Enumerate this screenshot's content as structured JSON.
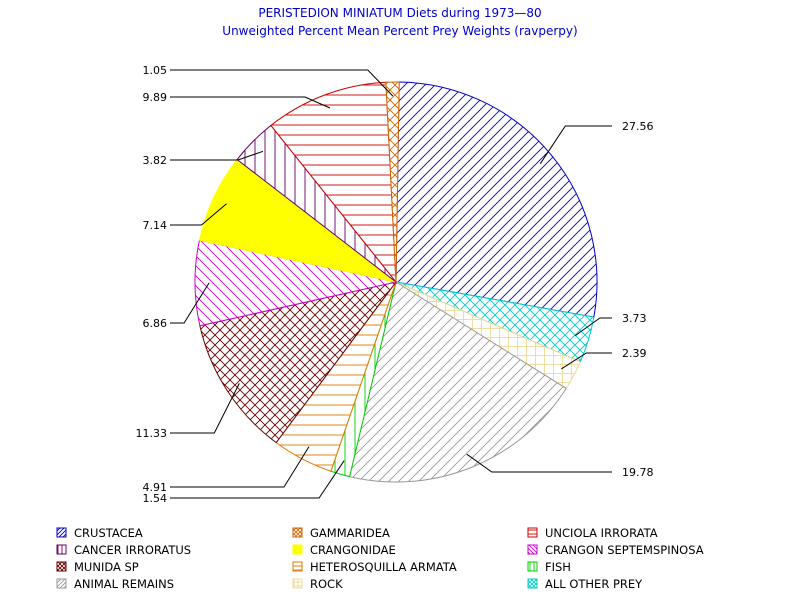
{
  "chart_data": {
    "type": "pie",
    "title": "PERISTEDION MINIATUM Diets during 1973—80",
    "subtitle": "Unweighted Percent Mean Percent Prey  Weights (ravperpy)",
    "slices": [
      {
        "name": "CRUSTACEA",
        "value": 27.56,
        "color": "#0000cc",
        "pattern": "diag-up"
      },
      {
        "name": "ALL OTHER PREY",
        "value": 3.73,
        "color": "#00cccc",
        "pattern": "crosshatch-diag"
      },
      {
        "name": "ROCK",
        "value": 2.39,
        "color": "#f0d898",
        "pattern": "grid"
      },
      {
        "name": "ANIMAL REMAINS",
        "value": 19.78,
        "color": "#999999",
        "pattern": "diag-up"
      },
      {
        "name": "FISH",
        "value": 1.54,
        "color": "#00cc00",
        "pattern": "vertical"
      },
      {
        "name": "HETEROSQUILLA ARMATA",
        "value": 4.91,
        "color": "#e07800",
        "pattern": "horizontal"
      },
      {
        "name": "MUNIDA SP",
        "value": 11.33,
        "color": "#660000",
        "pattern": "crosshatch-diag"
      },
      {
        "name": "CRANGON SEPTEMSPINOSA",
        "value": 6.86,
        "color": "#cc00cc",
        "pattern": "diag-down"
      },
      {
        "name": "CRANGONIDAE",
        "value": 7.14,
        "color": "#ffff00",
        "pattern": "solid"
      },
      {
        "name": "CANCER IRRORATUS",
        "value": 3.82,
        "color": "#660066",
        "pattern": "vertical"
      },
      {
        "name": "UNCIOLA IRRORATA",
        "value": 9.89,
        "color": "#cc0000",
        "pattern": "horizontal"
      },
      {
        "name": "GAMMARIDEA",
        "value": 1.05,
        "color": "#cc6600",
        "pattern": "crosshatch-diag"
      }
    ],
    "value_labels": [
      "27.56",
      "3.73",
      "2.39",
      "19.78",
      "1.54",
      "4.91",
      "11.33",
      "6.86",
      "7.14",
      "3.82",
      "9.89",
      "1.05"
    ],
    "legend": {
      "placement": "bottom",
      "columns": 3,
      "order": [
        "CRUSTACEA",
        "GAMMARIDEA",
        "UNCIOLA IRRORATA",
        "CANCER IRRORATUS",
        "CRANGONIDAE",
        "CRANGON SEPTEMSPINOSA",
        "MUNIDA SP",
        "HETEROSQUILLA ARMATA",
        "FISH",
        "ANIMAL REMAINS",
        "ROCK",
        "ALL OTHER PREY"
      ]
    }
  }
}
